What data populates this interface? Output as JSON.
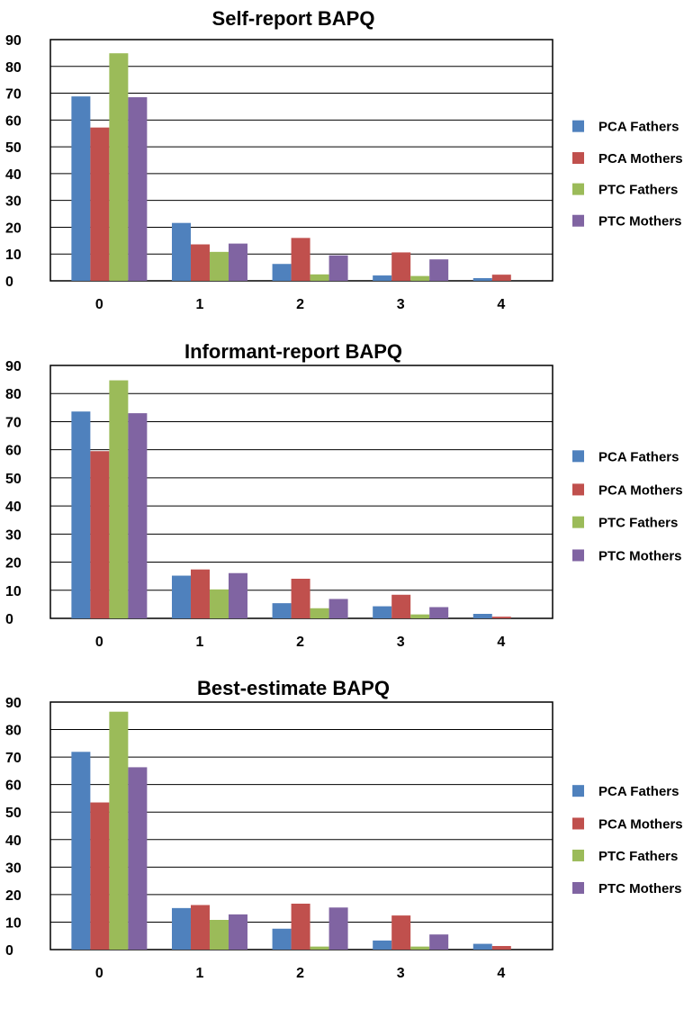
{
  "chart_data": [
    {
      "type": "bar",
      "title": "Self-report BAPQ",
      "categories": [
        "0",
        "1",
        "2",
        "3",
        "4"
      ],
      "ylim": [
        0,
        90
      ],
      "yticks": [
        0,
        10,
        20,
        30,
        40,
        50,
        60,
        70,
        80,
        90
      ],
      "grid": true,
      "legend_position": "right",
      "series": [
        {
          "name": "PCA Fathers",
          "color": "#4f81bd",
          "values": [
            68.8,
            21.6,
            6.3,
            2.0,
            1.0
          ]
        },
        {
          "name": "PCA Mothers",
          "color": "#c0504d",
          "values": [
            57.2,
            13.6,
            16.0,
            10.6,
            2.3
          ]
        },
        {
          "name": "PTC Fathers",
          "color": "#9bbb59",
          "values": [
            84.9,
            10.8,
            2.4,
            1.8,
            0
          ]
        },
        {
          "name": "PTC Mothers",
          "color": "#8064a2",
          "values": [
            68.5,
            13.9,
            9.5,
            8.0,
            0
          ]
        }
      ]
    },
    {
      "type": "bar",
      "title": "Informant-report BAPQ",
      "categories": [
        "0",
        "1",
        "2",
        "3",
        "4"
      ],
      "ylim": [
        0,
        90
      ],
      "yticks": [
        0,
        10,
        20,
        30,
        40,
        50,
        60,
        70,
        80,
        90
      ],
      "grid": true,
      "legend_position": "right",
      "series": [
        {
          "name": "PCA Fathers",
          "color": "#4f81bd",
          "values": [
            73.6,
            15.2,
            5.4,
            4.3,
            1.6
          ]
        },
        {
          "name": "PCA Mothers",
          "color": "#c0504d",
          "values": [
            59.5,
            17.4,
            14.1,
            8.4,
            0.6
          ]
        },
        {
          "name": "PTC Fathers",
          "color": "#9bbb59",
          "values": [
            84.7,
            10.3,
            3.6,
            1.4,
            0
          ]
        },
        {
          "name": "PTC Mothers",
          "color": "#8064a2",
          "values": [
            73.0,
            16.1,
            6.9,
            4.0,
            0
          ]
        }
      ]
    },
    {
      "type": "bar",
      "title": "Best-estimate BAPQ",
      "categories": [
        "0",
        "1",
        "2",
        "3",
        "4"
      ],
      "ylim": [
        0,
        90
      ],
      "yticks": [
        0,
        10,
        20,
        30,
        40,
        50,
        60,
        70,
        80,
        90
      ],
      "grid": true,
      "legend_position": "right",
      "series": [
        {
          "name": "PCA Fathers",
          "color": "#4f81bd",
          "values": [
            71.9,
            15.1,
            7.6,
            3.3,
            2.1
          ]
        },
        {
          "name": "PCA Mothers",
          "color": "#c0504d",
          "values": [
            53.5,
            16.2,
            16.7,
            12.4,
            1.3
          ]
        },
        {
          "name": "PTC Fathers",
          "color": "#9bbb59",
          "values": [
            86.5,
            10.8,
            1.1,
            1.1,
            0
          ]
        },
        {
          "name": "PTC Mothers",
          "color": "#8064a2",
          "values": [
            66.3,
            12.8,
            15.3,
            5.5,
            0
          ]
        }
      ]
    }
  ]
}
